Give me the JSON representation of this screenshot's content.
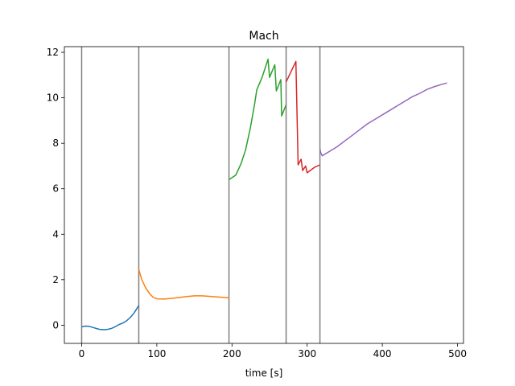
{
  "chart_data": {
    "type": "line",
    "title": "Mach",
    "xlabel": "time [s]",
    "ylabel": "",
    "xlim": [
      -23,
      508
    ],
    "ylim": [
      -0.8,
      12.25
    ],
    "xticks": [
      0,
      100,
      200,
      300,
      400,
      500
    ],
    "yticks": [
      0,
      2,
      4,
      6,
      8,
      10,
      12
    ],
    "grid": false,
    "legend": "none",
    "vlines": {
      "color": "#808080",
      "x": [
        0,
        76,
        196,
        272,
        317
      ]
    },
    "series": [
      {
        "color": "#1f77b4",
        "points": [
          [
            0,
            -0.07
          ],
          [
            5,
            -0.04
          ],
          [
            10,
            -0.05
          ],
          [
            15,
            -0.1
          ],
          [
            20,
            -0.15
          ],
          [
            25,
            -0.19
          ],
          [
            30,
            -0.2
          ],
          [
            35,
            -0.18
          ],
          [
            40,
            -0.14
          ],
          [
            45,
            -0.06
          ],
          [
            50,
            0.03
          ],
          [
            55,
            0.1
          ],
          [
            60,
            0.2
          ],
          [
            65,
            0.35
          ],
          [
            70,
            0.55
          ],
          [
            76,
            0.87
          ]
        ]
      },
      {
        "color": "#ff7f0e",
        "points": [
          [
            76,
            2.45
          ],
          [
            80,
            2.0
          ],
          [
            85,
            1.65
          ],
          [
            90,
            1.4
          ],
          [
            95,
            1.23
          ],
          [
            100,
            1.16
          ],
          [
            110,
            1.15
          ],
          [
            120,
            1.18
          ],
          [
            130,
            1.22
          ],
          [
            140,
            1.26
          ],
          [
            150,
            1.29
          ],
          [
            160,
            1.29
          ],
          [
            170,
            1.27
          ],
          [
            180,
            1.24
          ],
          [
            190,
            1.22
          ],
          [
            196,
            1.21
          ]
        ]
      },
      {
        "color": "#2ca02c",
        "points": [
          [
            196,
            6.4
          ],
          [
            205,
            6.6
          ],
          [
            212,
            7.1
          ],
          [
            218,
            7.7
          ],
          [
            224,
            8.6
          ],
          [
            230,
            9.7
          ],
          [
            233,
            10.35
          ],
          [
            240,
            10.9
          ],
          [
            248,
            11.7
          ],
          [
            250,
            10.9
          ],
          [
            257,
            11.45
          ],
          [
            259,
            10.3
          ],
          [
            265,
            10.8
          ],
          [
            266,
            9.2
          ],
          [
            272,
            9.7
          ]
        ]
      },
      {
        "color": "#d62728",
        "points": [
          [
            272,
            10.7
          ],
          [
            285,
            11.6
          ],
          [
            288,
            7.05
          ],
          [
            292,
            7.3
          ],
          [
            294,
            6.8
          ],
          [
            298,
            7.0
          ],
          [
            300,
            6.7
          ],
          [
            310,
            6.95
          ],
          [
            317,
            7.05
          ]
        ]
      },
      {
        "color": "#9467bd",
        "points": [
          [
            317,
            7.75
          ],
          [
            318,
            7.6
          ],
          [
            320,
            7.45
          ],
          [
            330,
            7.65
          ],
          [
            340,
            7.85
          ],
          [
            350,
            8.1
          ],
          [
            360,
            8.35
          ],
          [
            370,
            8.6
          ],
          [
            380,
            8.85
          ],
          [
            390,
            9.05
          ],
          [
            400,
            9.25
          ],
          [
            410,
            9.45
          ],
          [
            420,
            9.65
          ],
          [
            430,
            9.85
          ],
          [
            440,
            10.05
          ],
          [
            450,
            10.2
          ],
          [
            460,
            10.38
          ],
          [
            470,
            10.5
          ],
          [
            480,
            10.6
          ],
          [
            486,
            10.65
          ]
        ]
      }
    ]
  }
}
